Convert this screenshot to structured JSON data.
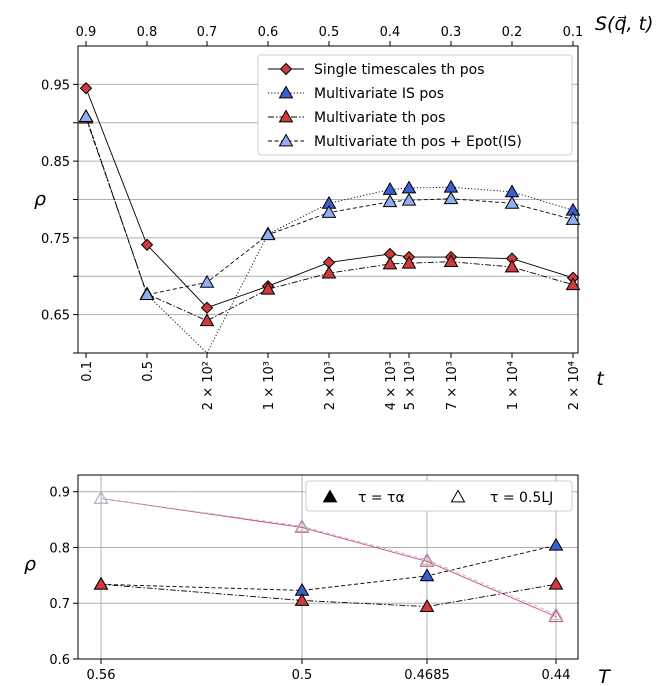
{
  "chart_data": [
    {
      "type": "line",
      "ylabel": "ρ",
      "xlabel": "t",
      "top_axis_label": "S(q⃗, t)",
      "ylim": [
        0.6,
        1.0
      ],
      "yticks": [
        0.65,
        0.75,
        0.85,
        0.95
      ],
      "categories": [
        "0.1",
        "0.5",
        "2 × 10²",
        "1 × 10³",
        "2 × 10³",
        "4 × 10³",
        "5 × 10³",
        "7 × 10³",
        "1 × 10⁴",
        "2 × 10⁴"
      ],
      "top_ticks": [
        "0.9",
        "0.8",
        "0.7",
        "0.6",
        "0.5",
        "0.4",
        "0.3",
        "0.2",
        "0.1"
      ],
      "grid": "horizontal",
      "legend_position": "top-right",
      "series": [
        {
          "name": "Single timescales th pos",
          "marker": "diamond",
          "color": "#d03a3a",
          "line": "solid",
          "values": [
            0.945,
            0.741,
            0.659,
            0.687,
            0.718,
            0.729,
            0.725,
            0.725,
            0.723,
            0.698
          ]
        },
        {
          "name": "Multivariate IS pos",
          "marker": "triangle",
          "color": "#3b5fd0",
          "line": "dotted",
          "values": [
            0.908,
            0.676,
            0.555,
            0.755,
            0.795,
            0.813,
            0.815,
            0.816,
            0.81,
            0.786
          ]
        },
        {
          "name": "Multivariate th pos",
          "marker": "triangle",
          "color": "#d03a3a",
          "line": "dashdot",
          "values": [
            0.906,
            0.677,
            0.642,
            0.683,
            0.704,
            0.716,
            0.717,
            0.719,
            0.712,
            0.689
          ]
        },
        {
          "name": "Multivariate th pos + Epot(IS)",
          "marker": "triangle",
          "color": "#91aef2",
          "line": "dashed",
          "values": [
            0.908,
            0.676,
            0.692,
            0.754,
            0.783,
            0.797,
            0.799,
            0.801,
            0.795,
            0.774
          ]
        }
      ]
    },
    {
      "type": "line",
      "ylabel": "ρ",
      "xlabel": "T",
      "ylim": [
        0.6,
        0.93
      ],
      "yticks": [
        0.6,
        0.7,
        0.8,
        0.9
      ],
      "categories": [
        "0.56",
        "0.5",
        "0.4685",
        "0.44"
      ],
      "grid": "both",
      "legend_position": "top-right",
      "legend": [
        {
          "name": "τ = τα",
          "marker": "triangle-filled"
        },
        {
          "name": "τ = 0.5LJ",
          "marker": "triangle-open"
        }
      ],
      "series": [
        {
          "marker": "triangle",
          "color": "#3b5fd0",
          "line": "dashed",
          "values": [
            0.734,
            0.723,
            0.749,
            0.804
          ]
        },
        {
          "marker": "triangle",
          "color": "#d03a3a",
          "line": "dashdot",
          "values": [
            0.734,
            0.705,
            0.694,
            0.734
          ]
        },
        {
          "marker": "triangle-open",
          "color": "#d84a5a",
          "line": "solid",
          "values": [
            0.888,
            0.836,
            0.775,
            0.676
          ]
        },
        {
          "marker": "triangle-open",
          "color": "#a9b8ea",
          "line": "dashed",
          "values": [
            0.888,
            0.838,
            0.778,
            0.68
          ]
        }
      ]
    }
  ]
}
